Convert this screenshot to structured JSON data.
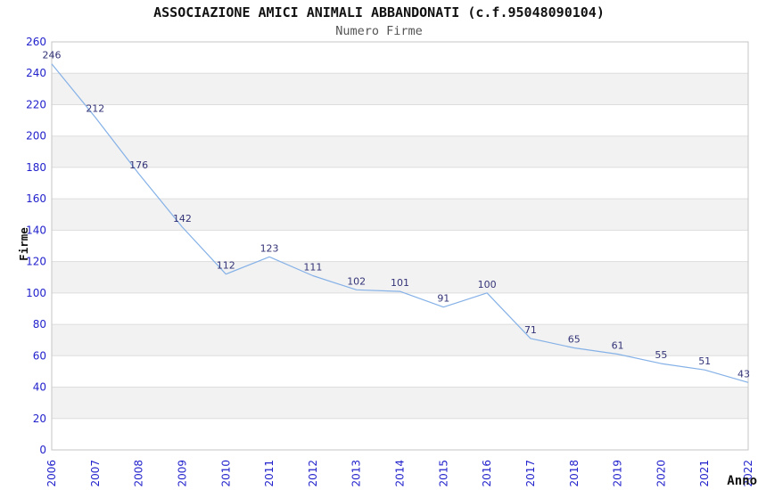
{
  "chart_data": {
    "type": "line",
    "title": "ASSOCIAZIONE AMICI ANIMALI ABBANDONATI (c.f.95048090104)",
    "subtitle": "Numero Firme",
    "xlabel": "Anno",
    "ylabel": "Firme",
    "categories": [
      "2006",
      "2007",
      "2008",
      "2009",
      "2010",
      "2011",
      "2012",
      "2013",
      "2014",
      "2015",
      "2016",
      "2017",
      "2018",
      "2019",
      "2020",
      "2021",
      "2022"
    ],
    "series": [
      {
        "name": "Numero Firme",
        "values": [
          246,
          212,
          176,
          142,
          112,
          123,
          111,
          102,
          101,
          91,
          100,
          71,
          65,
          61,
          55,
          51,
          43
        ]
      }
    ],
    "ylim": [
      0,
      260
    ],
    "ytick_step": 20,
    "grid": "horizontal-bands",
    "legend_position": "none",
    "point_labels_visible": true,
    "colors": {
      "line": "#85b1e7",
      "tick_label": "#2222cc",
      "data_label": "#333377",
      "band": "#f2f2f2",
      "gridline": "#dddddd",
      "plot_border": "#c6c6c6",
      "title": "#111111",
      "subtitle": "#555555",
      "axis_title": "#111111",
      "background": "#ffffff"
    }
  }
}
